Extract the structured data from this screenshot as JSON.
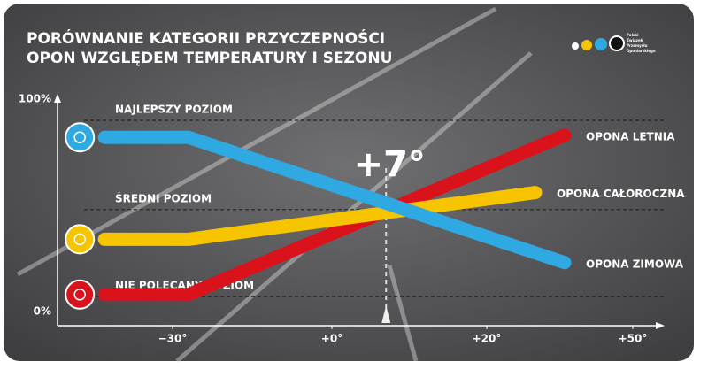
{
  "chart_data": {
    "type": "line",
    "title": [
      "PORÓWNANIE KATEGORII PRZYCZEPNOŚCI",
      "OPON WZGLĘDEM TEMPERATURY I SEZONU"
    ],
    "logo_text": [
      "Polski",
      "Związek",
      "Przemysłu",
      "Oponiarskiego"
    ],
    "series": [
      {
        "name": "OPONA LETNIA",
        "color": "#d9121c",
        "x": [
          -43,
          -27,
          36
        ],
        "values": [
          8,
          8,
          83
        ]
      },
      {
        "name": "OPONA CAŁOROCZNA",
        "color": "#f6c500",
        "x": [
          -43,
          -27,
          30
        ],
        "values": [
          34,
          34,
          56
        ]
      },
      {
        "name": "OPONA ZIMOWA",
        "color": "#2ea9e1",
        "x": [
          -43,
          -27,
          36
        ],
        "values": [
          82,
          82,
          23
        ]
      }
    ],
    "xlim": [
      -52,
      56
    ],
    "xticks": [
      {
        "value": -30,
        "label": "−30°"
      },
      {
        "value": 0,
        "label": "+0°"
      },
      {
        "value": 20,
        "label": "+20°"
      },
      {
        "value": 50,
        "label": "+50°"
      }
    ],
    "ylim": [
      0,
      100
    ],
    "yticks": [
      {
        "value": 0,
        "label": "0%"
      },
      {
        "value": 100,
        "label": "100%"
      }
    ],
    "levels": [
      {
        "label": "NAJLEPSZY POZIOM",
        "value": 90
      },
      {
        "label": "ŚREDNI POZIOM",
        "value": 48
      },
      {
        "label": "NIE POLECANY POZIOM",
        "value": 7
      }
    ],
    "marker": {
      "label": "+7°",
      "value": 7
    }
  }
}
